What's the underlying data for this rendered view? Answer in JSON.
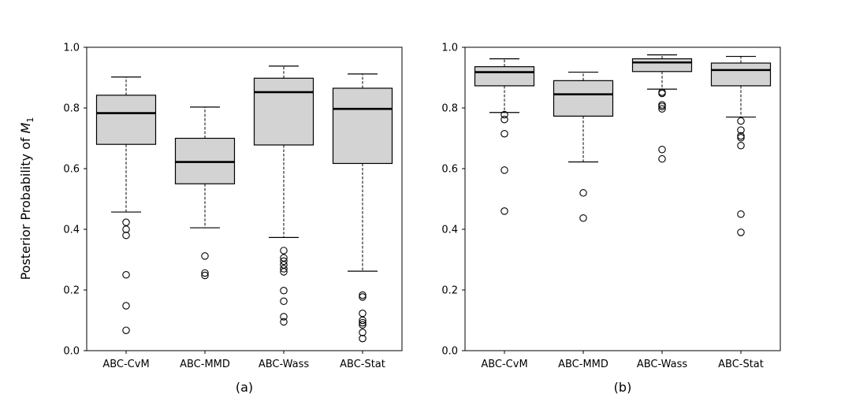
{
  "figure": {
    "ylabel_main": "Posterior Probability of ",
    "ylabel_symbol": "M",
    "ylabel_sub": "1"
  },
  "chart_data": [
    {
      "type": "box",
      "panel_label": "(a)",
      "categories": [
        "ABC-CvM",
        "ABC-MMD",
        "ABC-Wass",
        "ABC-Stat"
      ],
      "ylim": [
        0,
        1
      ],
      "yticks": [
        "0.0",
        "0.2",
        "0.4",
        "0.6",
        "0.8",
        "1.0"
      ],
      "grid": false,
      "box_fill": "#d3d3d3",
      "boxes": [
        {
          "whisker_low": 0.457,
          "q1": 0.68,
          "median": 0.783,
          "q3": 0.842,
          "whisker_high": 0.902,
          "outliers": [
            0.423,
            0.4,
            0.38,
            0.25,
            0.148,
            0.067
          ]
        },
        {
          "whisker_low": 0.405,
          "q1": 0.55,
          "median": 0.622,
          "q3": 0.7,
          "whisker_high": 0.803,
          "outliers": [
            0.312,
            0.256,
            0.248
          ]
        },
        {
          "whisker_low": 0.373,
          "q1": 0.678,
          "median": 0.852,
          "q3": 0.898,
          "whisker_high": 0.938,
          "outliers": [
            0.33,
            0.306,
            0.295,
            0.283,
            0.27,
            0.26,
            0.198,
            0.163,
            0.112,
            0.095
          ]
        },
        {
          "whisker_low": 0.262,
          "q1": 0.617,
          "median": 0.797,
          "q3": 0.865,
          "whisker_high": 0.912,
          "outliers": [
            0.183,
            0.177,
            0.123,
            0.1,
            0.092,
            0.085,
            0.06,
            0.04
          ]
        }
      ]
    },
    {
      "type": "box",
      "panel_label": "(b)",
      "categories": [
        "ABC-CvM",
        "ABC-MMD",
        "ABC-Wass",
        "ABC-Stat"
      ],
      "ylim": [
        0,
        1
      ],
      "yticks": [
        "0.0",
        "0.2",
        "0.4",
        "0.6",
        "0.8",
        "1.0"
      ],
      "grid": false,
      "box_fill": "#d3d3d3",
      "boxes": [
        {
          "whisker_low": 0.785,
          "q1": 0.873,
          "median": 0.918,
          "q3": 0.936,
          "whisker_high": 0.962,
          "outliers": [
            0.778,
            0.762,
            0.715,
            0.595,
            0.46
          ]
        },
        {
          "whisker_low": 0.622,
          "q1": 0.773,
          "median": 0.845,
          "q3": 0.89,
          "whisker_high": 0.918,
          "outliers": [
            0.52,
            0.437
          ]
        },
        {
          "whisker_low": 0.862,
          "q1": 0.92,
          "median": 0.95,
          "q3": 0.962,
          "whisker_high": 0.975,
          "outliers": [
            0.852,
            0.848,
            0.81,
            0.805,
            0.797,
            0.663,
            0.632
          ]
        },
        {
          "whisker_low": 0.77,
          "q1": 0.873,
          "median": 0.925,
          "q3": 0.948,
          "whisker_high": 0.97,
          "outliers": [
            0.757,
            0.727,
            0.708,
            0.702,
            0.676,
            0.45,
            0.39
          ]
        }
      ]
    }
  ]
}
